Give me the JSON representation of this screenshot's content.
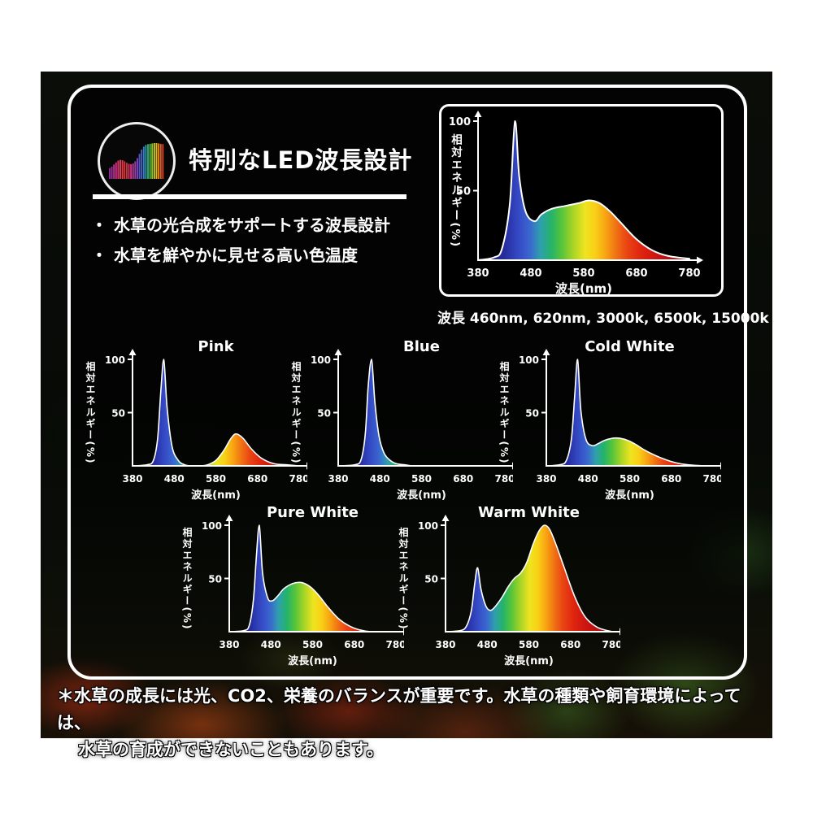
{
  "header": {
    "title": "特別なLED波長設計"
  },
  "bullet_prefix": "・",
  "bullets": [
    "水草の光合成をサポートする波長設計",
    "水草を鮮やかに見せる高い色温度"
  ],
  "main_caption": "波長 460nm, 620nm, 3000k, 6500k, 15000k",
  "footnote": {
    "line1": "＊水草の成長には光、CO2、栄養のバランスが重要です。水草の種類や飼育環境によっては、",
    "line2": "水草の育成ができないこともあります。"
  },
  "colors": {
    "panel_border": "#ffffff",
    "text": "#ffffff",
    "background": "#000000",
    "spectrum_stops": [
      [
        380,
        "#20206a"
      ],
      [
        430,
        "#252c9c"
      ],
      [
        455,
        "#3448c4"
      ],
      [
        478,
        "#3a66cf"
      ],
      [
        498,
        "#2f9fae"
      ],
      [
        518,
        "#24b36b"
      ],
      [
        538,
        "#55c43a"
      ],
      [
        560,
        "#a8d426"
      ],
      [
        582,
        "#eee420"
      ],
      [
        602,
        "#f9cf16"
      ],
      [
        622,
        "#f7a212"
      ],
      [
        642,
        "#f07014"
      ],
      [
        662,
        "#e94413"
      ],
      [
        688,
        "#df2410"
      ],
      [
        720,
        "#c91410"
      ],
      [
        780,
        "#a50d0e"
      ]
    ]
  },
  "icon": {
    "name": "spectrum-bars-icon",
    "bar_heights": [
      0.3,
      0.34,
      0.4,
      0.46,
      0.51,
      0.53,
      0.52,
      0.49,
      0.45,
      0.42,
      0.41,
      0.43,
      0.49,
      0.58,
      0.7,
      0.82,
      0.9,
      0.95,
      0.97,
      0.98,
      0.99,
      1.0,
      1.0,
      0.99,
      0.98,
      0.97
    ],
    "bar_colors": [
      "#8a2f9a",
      "#a5309f",
      "#bf3398",
      "#d3358a",
      "#e03a74",
      "#e6405c",
      "#e23f48",
      "#da3838",
      "#d23340",
      "#d63560",
      "#d03884",
      "#bb3a9f",
      "#9c40b2",
      "#7b48c0",
      "#5a52c8",
      "#4563c8",
      "#3b7ec0",
      "#2f9ba8",
      "#2fae7a",
      "#53bc48",
      "#8cc72f",
      "#c4cb22",
      "#e3b51c",
      "#e88c18",
      "#e55f16",
      "#dc3f2a"
    ]
  },
  "chart_data": [
    {
      "id": "main",
      "type": "area",
      "title": "",
      "xlabel": "波長(nm)",
      "ylabel": "相対エネルギー(%)",
      "xticks": [
        380,
        480,
        580,
        680,
        780
      ],
      "yticks": [
        100,
        50
      ],
      "xlim": [
        380,
        780
      ],
      "ylim": [
        0,
        100
      ],
      "x": [
        380,
        410,
        425,
        440,
        450,
        458,
        470,
        487,
        500,
        520,
        545,
        570,
        590,
        610,
        630,
        650,
        680,
        710,
        740,
        780
      ],
      "y": [
        0,
        2,
        8,
        40,
        100,
        60,
        35,
        28,
        33,
        37,
        39,
        41,
        43,
        41,
        35,
        27,
        15,
        7,
        3,
        1
      ]
    },
    {
      "id": "pink",
      "type": "area",
      "title": "Pink",
      "xlabel": "波長(nm)",
      "ylabel": "相対エネルギー(%)",
      "xticks": [
        380,
        480,
        580,
        680,
        780
      ],
      "yticks": [
        100,
        50
      ],
      "xlim": [
        380,
        780
      ],
      "ylim": [
        0,
        100
      ],
      "x": [
        380,
        415,
        430,
        440,
        448,
        455,
        463,
        475,
        490,
        505,
        520,
        545,
        560,
        580,
        600,
        615,
        628,
        645,
        665,
        690,
        720,
        750,
        780
      ],
      "y": [
        0,
        1,
        5,
        25,
        70,
        100,
        55,
        18,
        5,
        1,
        0,
        0,
        1,
        5,
        15,
        25,
        30,
        26,
        16,
        7,
        2,
        1,
        0
      ]
    },
    {
      "id": "blue",
      "type": "area",
      "title": "Blue",
      "xlabel": "波長(nm)",
      "ylabel": "相対エネルギー(%)",
      "xticks": [
        380,
        480,
        580,
        680,
        780
      ],
      "yticks": [
        100,
        50
      ],
      "xlim": [
        380,
        780
      ],
      "ylim": [
        0,
        100
      ],
      "x": [
        380,
        420,
        435,
        445,
        452,
        460,
        468,
        478,
        490,
        505,
        520,
        540,
        560,
        620,
        700,
        780
      ],
      "y": [
        0,
        1,
        6,
        30,
        75,
        100,
        60,
        28,
        12,
        5,
        2,
        1,
        0,
        0,
        0,
        0
      ]
    },
    {
      "id": "cold_white",
      "type": "area",
      "title": "Cold White",
      "xlabel": "波長(nm)",
      "ylabel": "相対エネルギー(%)",
      "xticks": [
        380,
        480,
        580,
        680,
        780
      ],
      "yticks": [
        100,
        50
      ],
      "xlim": [
        380,
        780
      ],
      "ylim": [
        0,
        100
      ],
      "x": [
        380,
        412,
        428,
        440,
        448,
        455,
        463,
        475,
        490,
        505,
        520,
        540,
        555,
        575,
        595,
        615,
        640,
        665,
        690,
        720,
        760,
        780
      ],
      "y": [
        0,
        1,
        5,
        25,
        65,
        100,
        52,
        25,
        19,
        21,
        24,
        26,
        26,
        24,
        20,
        15,
        10,
        6,
        3,
        1,
        0,
        0
      ]
    },
    {
      "id": "pure_white",
      "type": "area",
      "title": "Pure White",
      "xlabel": "波長(nm)",
      "ylabel": "相対エネルギー(%)",
      "xticks": [
        380,
        480,
        580,
        680,
        780
      ],
      "yticks": [
        100,
        50
      ],
      "xlim": [
        380,
        780
      ],
      "ylim": [
        0,
        100
      ],
      "x": [
        380,
        415,
        428,
        438,
        445,
        452,
        460,
        472,
        483,
        495,
        510,
        525,
        540,
        555,
        575,
        595,
        615,
        640,
        665,
        690,
        720,
        780
      ],
      "y": [
        0,
        1,
        6,
        30,
        70,
        100,
        55,
        32,
        29,
        33,
        40,
        44,
        46,
        46,
        42,
        34,
        24,
        13,
        6,
        2,
        0,
        0
      ]
    },
    {
      "id": "warm_white",
      "type": "area",
      "title": "Warm White",
      "xlabel": "波長(nm)",
      "ylabel": "相対エネルギー(%)",
      "xticks": [
        380,
        480,
        580,
        680,
        780
      ],
      "yticks": [
        100,
        50
      ],
      "xlim": [
        380,
        780
      ],
      "ylim": [
        0,
        100
      ],
      "x": [
        380,
        415,
        430,
        442,
        450,
        457,
        465,
        477,
        488,
        500,
        515,
        530,
        545,
        560,
        575,
        590,
        605,
        618,
        630,
        645,
        665,
        690,
        715,
        745,
        780
      ],
      "y": [
        0,
        1,
        5,
        20,
        45,
        60,
        40,
        24,
        20,
        24,
        32,
        42,
        50,
        55,
        65,
        82,
        95,
        100,
        96,
        82,
        60,
        33,
        14,
        4,
        0
      ]
    }
  ]
}
